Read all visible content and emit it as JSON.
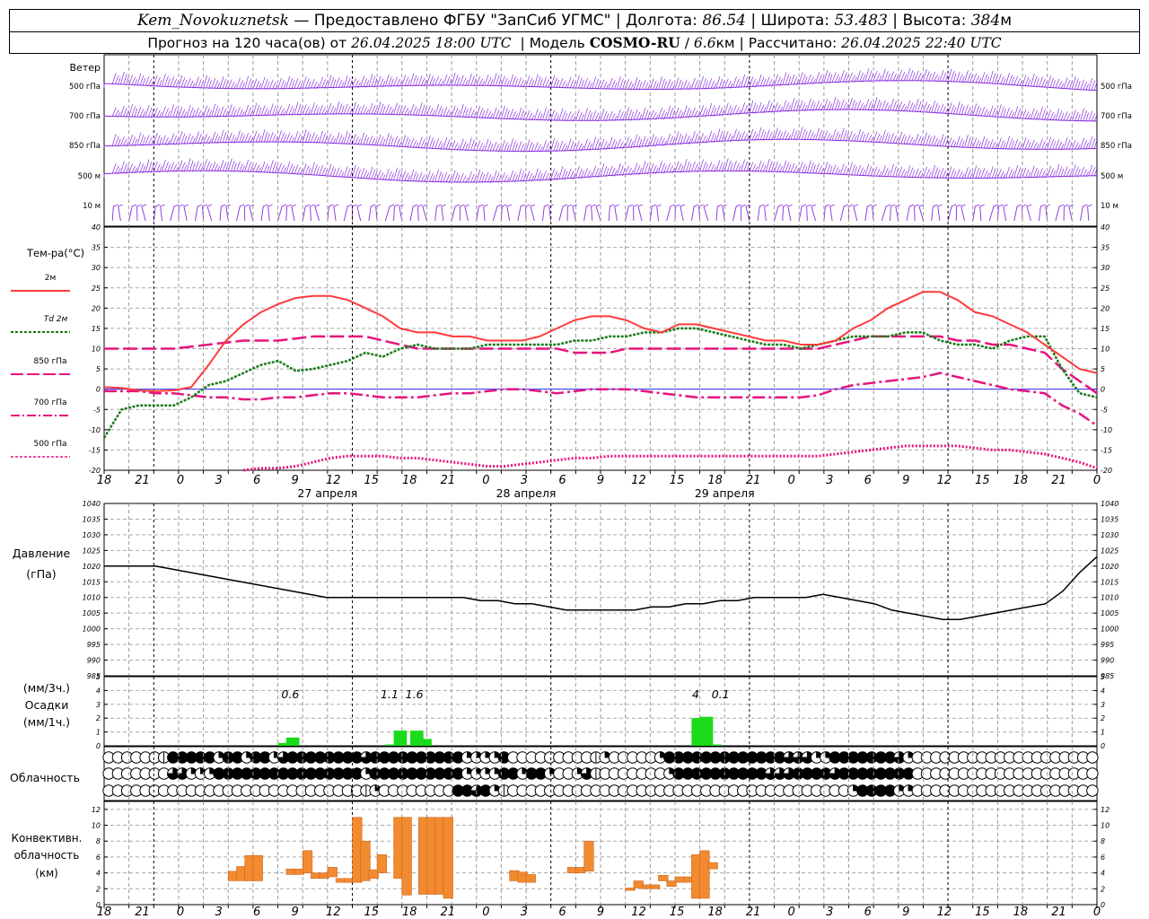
{
  "header": {
    "station": "Kem_Novokuznetsk",
    "dash": "—",
    "provider": "Предоставлено ФГБУ \"ЗапСиб УГМС\"",
    "lon_label": "Долгота:",
    "lon_value": "86.54",
    "lat_label": "Широта:",
    "lat_value": "53.483",
    "alt_label": "Высота:",
    "alt_value": "384",
    "alt_unit": "м",
    "forecast_prefix": "Прогноз на 120 часа(ов) от",
    "forecast_time": "26.04.2025 18:00 UTC",
    "model_label": "Модель",
    "model_name": "COSMO-RU",
    "model_sep": "/",
    "model_res": "6.6",
    "model_res_unit": "км",
    "calc_label": "Рассчитано:",
    "calc_time": "26.04.2025 22:40 UTC"
  },
  "colors": {
    "wind": "#8a2be2",
    "t2m": "#ff3b3b",
    "td2m": "#1a7a1a",
    "t_levels": "#e6147f",
    "pressure": "#000000",
    "precip": "#1adb1a",
    "convective": "#f28a30"
  },
  "chart_data": [
    {
      "type": "line",
      "panel": "wind",
      "title": "Ветер",
      "levels": [
        "500 гПа",
        "700 гПа",
        "850 гПа",
        "500 м",
        "10  м"
      ]
    },
    {
      "type": "line",
      "panel": "temperature",
      "title": "Тем-ра(°С)",
      "x_ticks": [
        "18",
        "21",
        "0",
        "3",
        "6",
        "9",
        "12",
        "15",
        "18",
        "21",
        "0",
        "3",
        "6",
        "9",
        "12",
        "15",
        "18",
        "21",
        "0",
        "3",
        "6",
        "9",
        "12",
        "15",
        "18",
        "21",
        "0"
      ],
      "day_labels": [
        "27 апреля",
        "28 апреля",
        "29 апреля"
      ],
      "ylim": [
        -20,
        40
      ],
      "y_ticks": [
        -20,
        -15,
        -10,
        -5,
        0,
        5,
        10,
        15,
        20,
        25,
        30,
        35,
        40
      ],
      "series": [
        {
          "name": "2м",
          "key": "t2m",
          "values": [
            0.5,
            0.3,
            -0.3,
            -0.5,
            -0.3,
            0.5,
            6,
            12,
            16,
            19,
            21,
            22.5,
            23,
            23,
            22,
            20,
            18,
            15,
            14,
            14,
            13,
            13,
            12,
            12,
            12,
            13,
            15,
            17,
            18,
            18,
            17,
            15,
            14,
            16,
            16,
            15,
            14,
            13,
            12,
            12,
            11,
            11,
            12,
            15,
            17,
            20,
            22,
            24,
            24,
            22,
            19,
            18,
            16,
            14,
            11,
            8,
            5,
            4
          ]
        },
        {
          "name": "Td 2м",
          "key": "td2m",
          "values": [
            -12,
            -5,
            -4,
            -4,
            -4,
            -2,
            1,
            2,
            4,
            6,
            7,
            4.5,
            5,
            6,
            7,
            9,
            8,
            10,
            11,
            10,
            10,
            10,
            11,
            11,
            11,
            11,
            11,
            12,
            12,
            13,
            13,
            14,
            14,
            15,
            15,
            14,
            13,
            12,
            11,
            11,
            10,
            11,
            12,
            13,
            13,
            13,
            14,
            14,
            12,
            11,
            11,
            10,
            12,
            13,
            13,
            5,
            -1,
            -2
          ]
        },
        {
          "name": "850 гПа",
          "key": "t850",
          "values": [
            10,
            10,
            10,
            10,
            10,
            10.5,
            11,
            11.5,
            12,
            12,
            12,
            12.5,
            13,
            13,
            13,
            13,
            12,
            11,
            10,
            10,
            10,
            10,
            10,
            10,
            10,
            10,
            10,
            9,
            9,
            9,
            10,
            10,
            10,
            10,
            10,
            10,
            10,
            10,
            10,
            10,
            10,
            10,
            11,
            12,
            13,
            13,
            13,
            13,
            13,
            12,
            12,
            11,
            11,
            10,
            9,
            5,
            2,
            -1
          ]
        },
        {
          "name": "700 гПа",
          "key": "t700",
          "values": [
            -0.5,
            -0.5,
            -0.5,
            -1,
            -1,
            -1.5,
            -2,
            -2,
            -2.5,
            -2.5,
            -2,
            -2,
            -1.5,
            -1,
            -1,
            -1.5,
            -2,
            -2,
            -2,
            -1.5,
            -1,
            -1,
            -0.5,
            0,
            0,
            -0.5,
            -1,
            -0.5,
            0,
            0,
            0,
            -0.5,
            -1,
            -1.5,
            -2,
            -2,
            -2,
            -2,
            -2,
            -2,
            -2,
            -1.5,
            0,
            1,
            1.5,
            2,
            2.5,
            3,
            4,
            3,
            2,
            1,
            0,
            -0.5,
            -1,
            -4,
            -6,
            -9
          ]
        },
        {
          "name": "500 гПа",
          "key": "t500",
          "values": [
            null,
            null,
            null,
            null,
            null,
            null,
            null,
            null,
            -20,
            -19.5,
            -19.5,
            -19,
            -18,
            -17,
            -16.5,
            -16.5,
            -16.5,
            -17,
            -17,
            -17.5,
            -18,
            -18.5,
            -19,
            -19,
            -18.5,
            -18,
            -17.5,
            -17,
            -17,
            -16.5,
            -16.5,
            -16.5,
            -16.5,
            -16.5,
            -16.5,
            -16.5,
            -16.5,
            -16.5,
            -16.5,
            -16.5,
            -16.5,
            -16.5,
            -16,
            -15.5,
            -15,
            -14.5,
            -14,
            -14,
            -14,
            -14,
            -14.5,
            -15,
            -15,
            -15.5,
            -16,
            -17,
            -18,
            -19.5
          ]
        }
      ]
    },
    {
      "type": "line",
      "panel": "pressure",
      "title": "Давление",
      "ylabel": "(гПа)",
      "ylim": [
        985,
        1040
      ],
      "y_ticks": [
        985,
        990,
        995,
        1000,
        1005,
        1010,
        1015,
        1020,
        1025,
        1030,
        1035,
        1040
      ],
      "series": [
        {
          "name": "Давление",
          "values": [
            1020,
            1020,
            1020,
            1020,
            1019,
            1018,
            1017,
            1016,
            1015,
            1014,
            1013,
            1012,
            1011,
            1010,
            1010,
            1010,
            1010,
            1010,
            1010,
            1010,
            1010,
            1010,
            1009,
            1009,
            1008,
            1008,
            1007,
            1006,
            1006,
            1006,
            1006,
            1006,
            1007,
            1007,
            1008,
            1008,
            1009,
            1009,
            1010,
            1010,
            1010,
            1010,
            1011,
            1010,
            1009,
            1008,
            1006,
            1005,
            1004,
            1003,
            1003,
            1004,
            1005,
            1006,
            1007,
            1008,
            1012,
            1018,
            1023
          ]
        }
      ]
    },
    {
      "type": "bar",
      "panel": "precipitation",
      "title": "Осадки",
      "ylabel_top": "(мм/3ч.)",
      "ylabel_bottom": "(мм/1ч.)",
      "ylim": [
        0,
        5
      ],
      "y_ticks": [
        0,
        1,
        2,
        3,
        4,
        5
      ],
      "bars": [
        {
          "t": 21,
          "v": 0.2
        },
        {
          "t": 22,
          "v": 0.6
        },
        {
          "t": 34,
          "v": 0.1
        },
        {
          "t": 35,
          "v": 1.1
        },
        {
          "t": 37,
          "v": 1.1
        },
        {
          "t": 38,
          "v": 0.5
        },
        {
          "t": 71,
          "v": 2.0
        },
        {
          "t": 72,
          "v": 2.1
        },
        {
          "t": 73,
          "v": 0.1
        }
      ],
      "labels": [
        {
          "t": 22.5,
          "text": "0.6"
        },
        {
          "t": 34.5,
          "text": "1.1"
        },
        {
          "t": 37.5,
          "text": "1.6"
        },
        {
          "t": 71.5,
          "text": "4"
        },
        {
          "t": 74.5,
          "text": "0.1"
        }
      ]
    },
    {
      "type": "table",
      "panel": "cloudiness",
      "title": "Облачность",
      "rows": [
        [
          0,
          0,
          0,
          0,
          0,
          0,
          1,
          4,
          4,
          4,
          4,
          4,
          2,
          4,
          4,
          2,
          4,
          4,
          2,
          3,
          4,
          4,
          4,
          4,
          4,
          4,
          4,
          4,
          3,
          4,
          4,
          4,
          4,
          4,
          4,
          4,
          4,
          4,
          4,
          2,
          2,
          2,
          2,
          4,
          0,
          0,
          0,
          0,
          0,
          0,
          0,
          0,
          0,
          1,
          2,
          0,
          0,
          0,
          0,
          0,
          2,
          4,
          4,
          4,
          4,
          4,
          4,
          4,
          4,
          4,
          4,
          4,
          4,
          4,
          3,
          3,
          3,
          2,
          2,
          4,
          4,
          4,
          4,
          4,
          4,
          4,
          3,
          2,
          0,
          0,
          0,
          0,
          0,
          0,
          0,
          0,
          0,
          0,
          0,
          0,
          0,
          0,
          0,
          0,
          0,
          0,
          0,
          0
        ],
        [
          0,
          0,
          0,
          0,
          0,
          0,
          0,
          3,
          3,
          2,
          2,
          2,
          4,
          4,
          4,
          4,
          4,
          4,
          4,
          4,
          4,
          4,
          4,
          4,
          4,
          4,
          4,
          4,
          2,
          4,
          4,
          4,
          4,
          4,
          4,
          4,
          4,
          4,
          4,
          2,
          2,
          2,
          2,
          4,
          4,
          2,
          4,
          4,
          2,
          0,
          0,
          2,
          3,
          1,
          0,
          0,
          0,
          0,
          0,
          0,
          0,
          2,
          4,
          4,
          4,
          4,
          4,
          4,
          4,
          4,
          4,
          4,
          3,
          3,
          3,
          4,
          4,
          4,
          4,
          3,
          4,
          4,
          4,
          4,
          4,
          4,
          4,
          4,
          0,
          0,
          0,
          0,
          0,
          0,
          0,
          0,
          0,
          0,
          0,
          0,
          0,
          0,
          0,
          0,
          0,
          0,
          0,
          0
        ],
        [
          0,
          0,
          0,
          0,
          0,
          0,
          0,
          0,
          0,
          0,
          0,
          0,
          0,
          0,
          0,
          0,
          0,
          0,
          0,
          0,
          0,
          0,
          0,
          0,
          0,
          0,
          0,
          0,
          1,
          2,
          0,
          0,
          0,
          0,
          0,
          0,
          0,
          0,
          4,
          4,
          3,
          4,
          2,
          1,
          0,
          0,
          0,
          0,
          0,
          0,
          0,
          0,
          0,
          0,
          0,
          0,
          0,
          0,
          0,
          0,
          0,
          0,
          0,
          0,
          0,
          0,
          0,
          0,
          0,
          0,
          0,
          0,
          0,
          0,
          0,
          0,
          0,
          0,
          0,
          0,
          0,
          2,
          4,
          4,
          4,
          4,
          2,
          2,
          0,
          0,
          0,
          0,
          0,
          0,
          0,
          0,
          0,
          0,
          0,
          0,
          0,
          0,
          0,
          0,
          0,
          0,
          0,
          0
        ]
      ]
    },
    {
      "type": "bar",
      "panel": "convective",
      "title": "Конвективн.",
      "ylabel_mid": "облачность",
      "ylabel": "(км)",
      "ylim": [
        0,
        13
      ],
      "y_ticks": [
        0,
        2,
        4,
        6,
        8,
        10,
        12
      ],
      "bars": [
        {
          "t": 15,
          "lo": 3,
          "hi": 4.2
        },
        {
          "t": 16,
          "lo": 3,
          "hi": 4.8
        },
        {
          "t": 17,
          "lo": 3,
          "hi": 6.2
        },
        {
          "t": 18,
          "lo": 3,
          "hi": 6.2
        },
        {
          "t": 22,
          "lo": 3.8,
          "hi": 4.5
        },
        {
          "t": 23,
          "lo": 3.8,
          "hi": 4.5
        },
        {
          "t": 24,
          "lo": 4,
          "hi": 6.8
        },
        {
          "t": 25,
          "lo": 3.3,
          "hi": 4
        },
        {
          "t": 26,
          "lo": 3.3,
          "hi": 4
        },
        {
          "t": 27,
          "lo": 3.5,
          "hi": 4.7
        },
        {
          "t": 28,
          "lo": 2.8,
          "hi": 3.3
        },
        {
          "t": 29,
          "lo": 2.8,
          "hi": 3.3
        },
        {
          "t": 30,
          "lo": 2.8,
          "hi": 11
        },
        {
          "t": 31,
          "lo": 3,
          "hi": 8
        },
        {
          "t": 32,
          "lo": 3.3,
          "hi": 4.4
        },
        {
          "t": 33,
          "lo": 4,
          "hi": 6.3
        },
        {
          "t": 35,
          "lo": 3.3,
          "hi": 11
        },
        {
          "t": 36,
          "lo": 1.2,
          "hi": 11
        },
        {
          "t": 38,
          "lo": 1.3,
          "hi": 11
        },
        {
          "t": 39,
          "lo": 1.3,
          "hi": 11
        },
        {
          "t": 40,
          "lo": 1.3,
          "hi": 11
        },
        {
          "t": 41,
          "lo": 0.8,
          "hi": 11
        },
        {
          "t": 49,
          "lo": 3,
          "hi": 4.3
        },
        {
          "t": 50,
          "lo": 2.8,
          "hi": 4.1
        },
        {
          "t": 51,
          "lo": 2.8,
          "hi": 3.8
        },
        {
          "t": 56,
          "lo": 4,
          "hi": 4.7
        },
        {
          "t": 57,
          "lo": 4,
          "hi": 4.7
        },
        {
          "t": 58,
          "lo": 4.2,
          "hi": 8
        },
        {
          "t": 63,
          "lo": 1.8,
          "hi": 2.1
        },
        {
          "t": 64,
          "lo": 2.1,
          "hi": 3
        },
        {
          "t": 65,
          "lo": 2,
          "hi": 2.5
        },
        {
          "t": 66,
          "lo": 2,
          "hi": 2.5
        },
        {
          "t": 67,
          "lo": 3,
          "hi": 3.7
        },
        {
          "t": 68,
          "lo": 2.3,
          "hi": 3
        },
        {
          "t": 69,
          "lo": 2.8,
          "hi": 3.5
        },
        {
          "t": 70,
          "lo": 2.8,
          "hi": 3.5
        },
        {
          "t": 71,
          "lo": 0.8,
          "hi": 6.3
        },
        {
          "t": 72,
          "lo": 0.8,
          "hi": 6.8
        },
        {
          "t": 73,
          "lo": 4.5,
          "hi": 5.3
        }
      ]
    }
  ]
}
